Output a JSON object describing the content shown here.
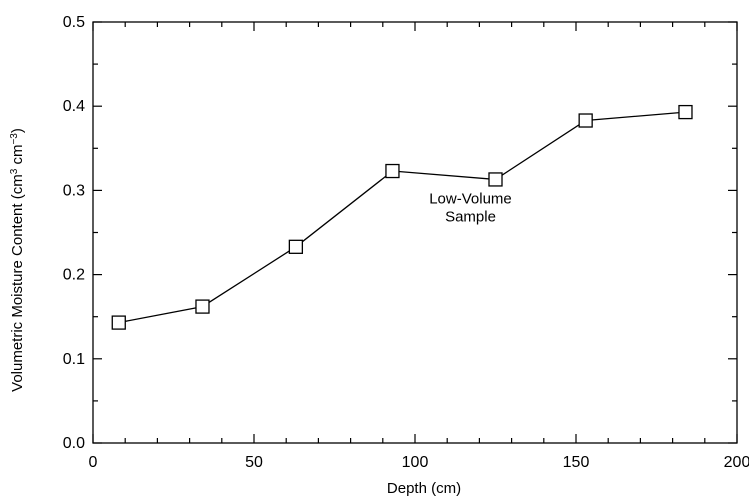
{
  "chart_data": {
    "type": "line",
    "title": "",
    "xlabel": "Depth (cm)",
    "ylabel_parts": [
      "Volumetric Moisture Content (cm",
      "3",
      " cm",
      "−3",
      ")"
    ],
    "xlim": [
      0,
      200
    ],
    "ylim": [
      0.0,
      0.5
    ],
    "x_ticks": [
      0,
      50,
      100,
      150,
      200
    ],
    "x_tick_labels": [
      "0",
      "50",
      "100",
      "150",
      "200"
    ],
    "x_minor_step": 10,
    "y_ticks": [
      0.0,
      0.1,
      0.2,
      0.3,
      0.4,
      0.5
    ],
    "y_tick_labels": [
      "0.0",
      "0.1",
      "0.2",
      "0.3",
      "0.4",
      "0.5"
    ],
    "y_minor_step": 0.05,
    "grid": false,
    "marker": "open-square",
    "series": [
      {
        "x": [
          8,
          34,
          63,
          93,
          125,
          153,
          184
        ],
        "y": [
          0.143,
          0.162,
          0.233,
          0.323,
          0.313,
          0.383,
          0.393
        ]
      }
    ],
    "annotations": [
      {
        "lines": [
          "Low-Volume",
          "Sample"
        ],
        "x": 125,
        "y": 0.313
      }
    ]
  }
}
